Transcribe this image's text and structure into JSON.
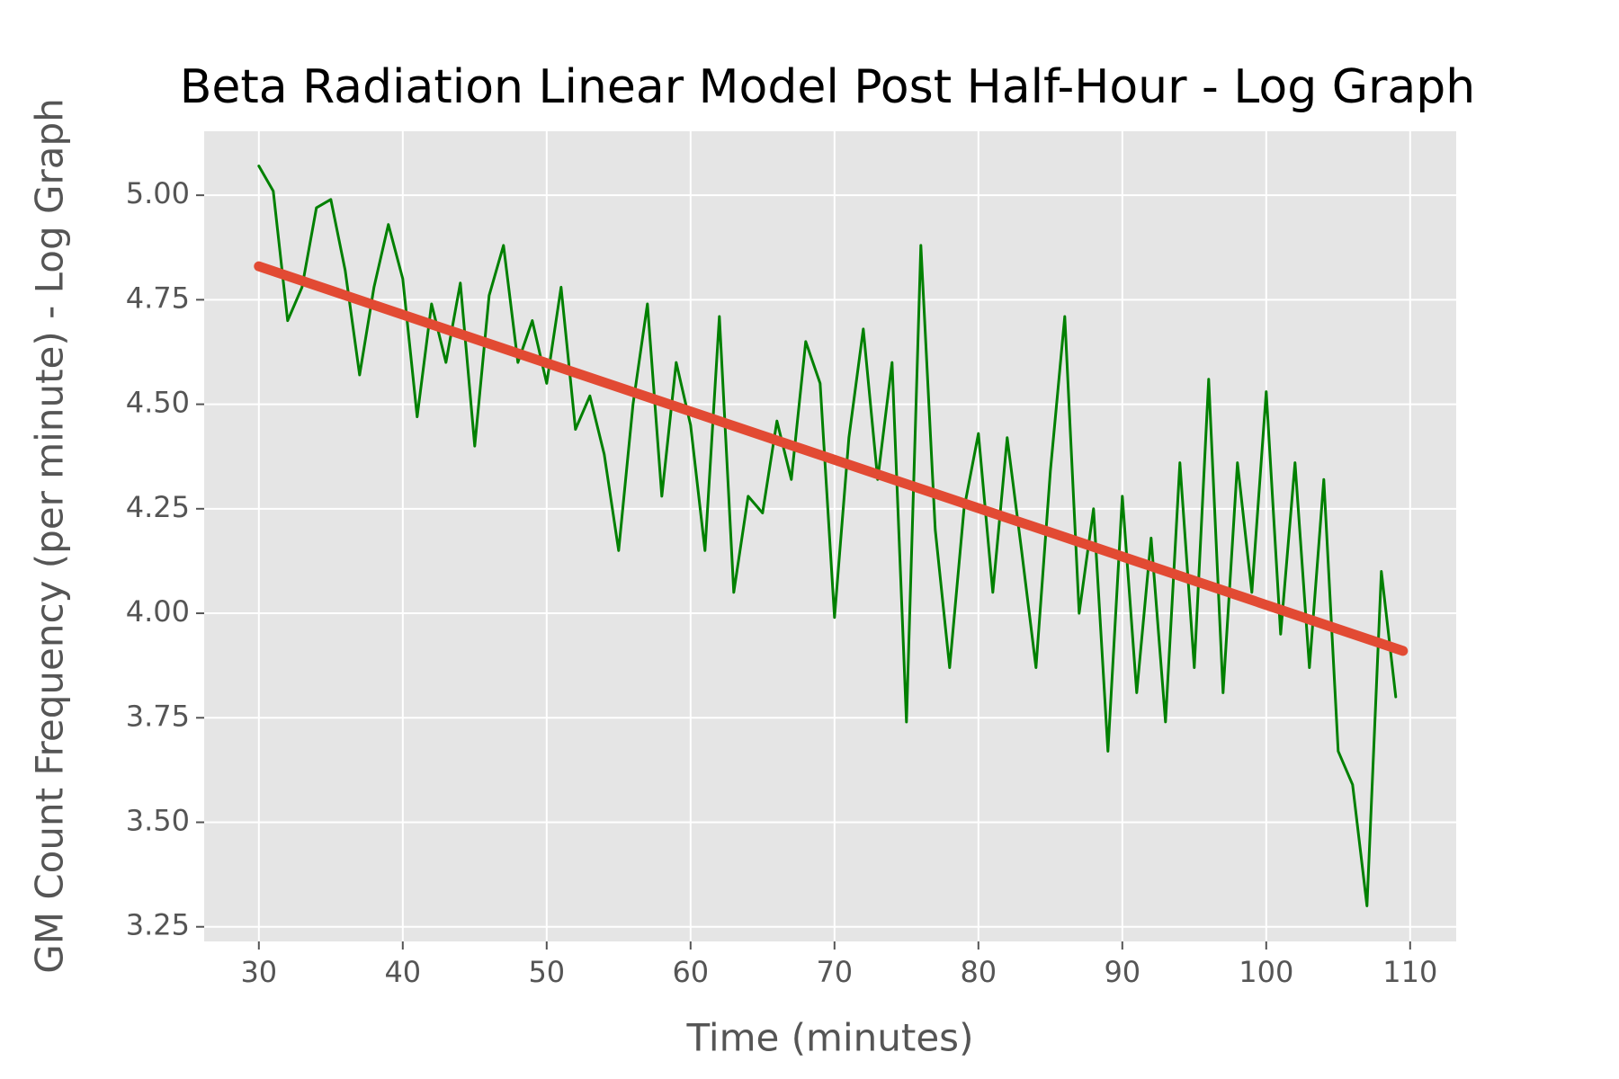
{
  "chart_data": {
    "type": "line",
    "title": "Beta Radiation Linear Model Post Half-Hour - Log Graph",
    "x_label": "Time (minutes)",
    "y_label": "GM Count Frequency (per minute) - Log Graph",
    "xlim": [
      26.2,
      113.2
    ],
    "ylim": [
      3.215,
      5.153
    ],
    "xticks": [
      30,
      40,
      50,
      60,
      70,
      80,
      90,
      100,
      110
    ],
    "yticks": [
      {
        "value": 3.25,
        "label": "3.25"
      },
      {
        "value": 3.5,
        "label": "3.50"
      },
      {
        "value": 3.75,
        "label": "3.75"
      },
      {
        "value": 4,
        "label": "4.00"
      },
      {
        "value": 4.25,
        "label": "4.25"
      },
      {
        "value": 4.5,
        "label": "4.50"
      },
      {
        "value": 4.75,
        "label": "4.75"
      },
      {
        "value": 5,
        "label": "5.00"
      }
    ],
    "grid": true,
    "series": [
      {
        "color": "#008000",
        "width": 3,
        "x": [
          30,
          31,
          32,
          33,
          34,
          35,
          36,
          37,
          38,
          39,
          40,
          41,
          42,
          43,
          44,
          45,
          46,
          47,
          48,
          49,
          50,
          51,
          52,
          53,
          54,
          55,
          56,
          57,
          58,
          59,
          60,
          61,
          62,
          63,
          64,
          65,
          66,
          67,
          68,
          69,
          70,
          71,
          72,
          73,
          74,
          75,
          76,
          77,
          78,
          79,
          80,
          81,
          82,
          83,
          84,
          85,
          86,
          87,
          88,
          89,
          90,
          91,
          92,
          93,
          94,
          95,
          96,
          97,
          98,
          99,
          100,
          101,
          102,
          103,
          104,
          105,
          106,
          107,
          108,
          109
        ],
        "values": [
          5.07,
          5.01,
          4.7,
          4.78,
          4.97,
          4.99,
          4.82,
          4.57,
          4.78,
          4.93,
          4.8,
          4.47,
          4.74,
          4.6,
          4.79,
          4.4,
          4.76,
          4.88,
          4.6,
          4.7,
          4.55,
          4.78,
          4.44,
          4.52,
          4.38,
          4.15,
          4.5,
          4.74,
          4.28,
          4.6,
          4.45,
          4.15,
          4.71,
          4.05,
          4.28,
          4.24,
          4.46,
          4.32,
          4.65,
          4.55,
          3.99,
          4.42,
          4.68,
          4.32,
          4.6,
          3.74,
          4.88,
          4.2,
          3.87,
          4.25,
          4.43,
          4.05,
          4.42,
          4.15,
          3.87,
          4.34,
          4.71,
          4.0,
          4.25,
          3.67,
          4.28,
          3.81,
          4.18,
          3.74,
          4.36,
          3.87,
          4.56,
          3.81,
          4.36,
          4.05,
          4.53,
          3.95,
          4.36,
          3.87,
          4.32,
          3.67,
          3.59,
          3.3,
          4.1,
          3.8
        ]
      },
      {
        "color": "#e24a33",
        "width": 11,
        "x": [
          30,
          109.5
        ],
        "values": [
          4.83,
          3.91
        ]
      }
    ]
  }
}
